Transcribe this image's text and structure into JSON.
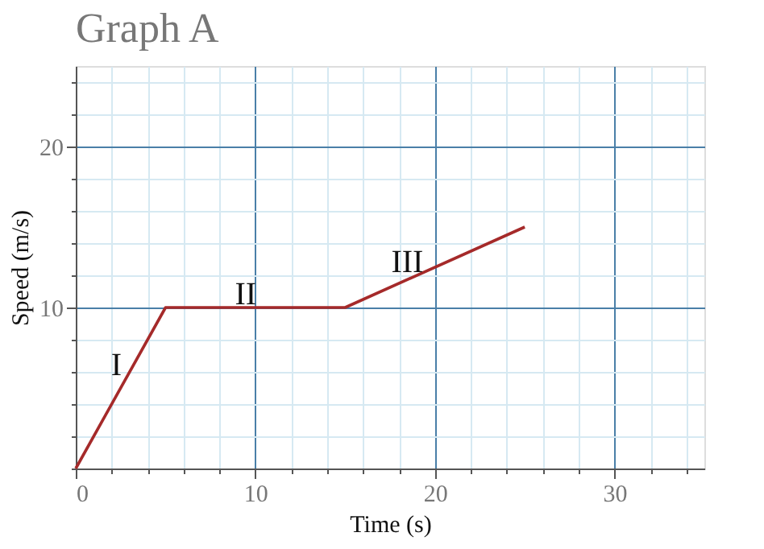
{
  "chart_data": {
    "type": "line",
    "title": "Graph A",
    "xlabel": "Time (s)",
    "ylabel": "Speed (m/s)",
    "x": [
      0,
      5,
      15,
      25
    ],
    "series": [
      {
        "color": "#a52a2a",
        "values": [
          0,
          10,
          10,
          15
        ]
      }
    ],
    "xlim": [
      0,
      35
    ],
    "ylim": [
      0,
      25
    ],
    "xticks": [
      0,
      {
        "value": 2,
        "label": null
      },
      {
        "value": 4,
        "label": null
      },
      {
        "value": 6,
        "label": null
      },
      {
        "value": 8,
        "label": null
      },
      10,
      {
        "value": 12,
        "label": null
      },
      {
        "value": 14,
        "label": null
      },
      {
        "value": 16,
        "label": null
      },
      {
        "value": 18,
        "label": null
      },
      20,
      {
        "value": 22,
        "label": null
      },
      {
        "value": 24,
        "label": null
      },
      {
        "value": 26,
        "label": null
      },
      {
        "value": 28,
        "label": null
      },
      30,
      {
        "value": 32,
        "label": null
      },
      {
        "value": 34,
        "label": null
      }
    ],
    "yticks": [
      {
        "value": 0,
        "label": null
      },
      {
        "value": 2,
        "label": null
      },
      {
        "value": 4,
        "label": null
      },
      {
        "value": 6,
        "label": null
      },
      {
        "value": 8,
        "label": null
      },
      10,
      {
        "value": 12,
        "label": null
      },
      {
        "value": 14,
        "label": null
      },
      {
        "value": 16,
        "label": null
      },
      {
        "value": 18,
        "label": null
      },
      20,
      {
        "value": 22,
        "label": null
      },
      {
        "value": 24,
        "label": null
      }
    ],
    "annotations": [
      {
        "text": "I",
        "x": 2.8,
        "y": 5.6
      },
      {
        "text": "II",
        "x": 10,
        "y": 10
      },
      {
        "text": "III",
        "x": 19,
        "y": 12
      }
    ],
    "grid": true,
    "line_style": "solid",
    "marker": "none"
  }
}
